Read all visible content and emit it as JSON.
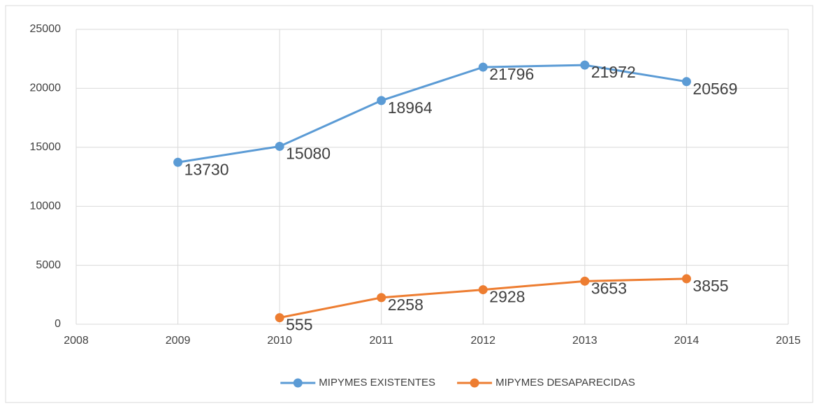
{
  "chart_data": {
    "type": "line",
    "x": [
      2009,
      2010,
      2011,
      2012,
      2013,
      2014
    ],
    "series": [
      {
        "name": "MIPYMES EXISTENTES",
        "color": "#5b9bd5",
        "values": [
          13730,
          15080,
          18964,
          21796,
          21972,
          20569
        ]
      },
      {
        "name": "MIPYMES DESAPARECIDAS",
        "color": "#ed7d31",
        "values": [
          null,
          555,
          2258,
          2928,
          3653,
          3855
        ]
      }
    ],
    "xlim": [
      2008,
      2015
    ],
    "xticks": [
      2008,
      2009,
      2010,
      2011,
      2012,
      2013,
      2014,
      2015
    ],
    "ylim": [
      0,
      25000
    ],
    "yticks": [
      0,
      5000,
      10000,
      15000,
      20000,
      25000
    ],
    "grid": true,
    "legend": "bottom"
  }
}
